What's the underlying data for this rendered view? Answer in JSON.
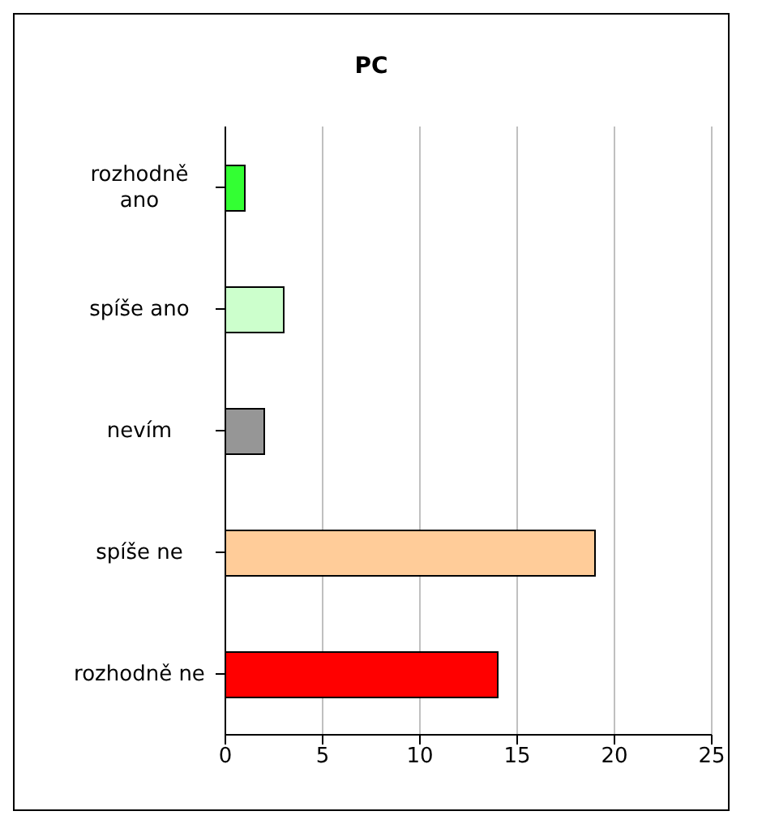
{
  "chart_data": {
    "type": "bar",
    "orientation": "horizontal",
    "title": "PC",
    "categories": [
      "rozhodně ano",
      "spíše ano",
      "nevím",
      "spíše ne",
      "rozhodně ne"
    ],
    "values": [
      1,
      3,
      2,
      19,
      14
    ],
    "colors": [
      "#33ff33",
      "#ccffcc",
      "#969696",
      "#ffcc99",
      "#ff0000"
    ],
    "xlim": [
      0,
      25
    ],
    "xticks": [
      0,
      5,
      10,
      15,
      20,
      25
    ],
    "grid": "x",
    "legend": false
  }
}
